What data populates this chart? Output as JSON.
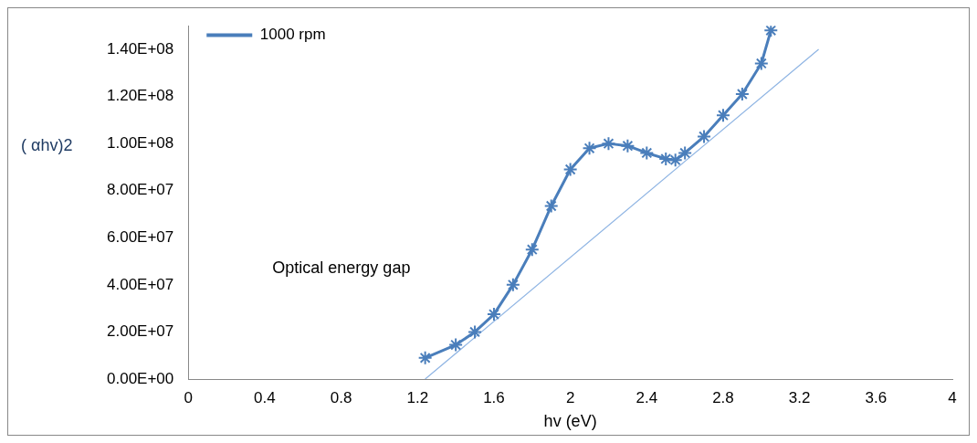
{
  "chart_data": {
    "type": "line",
    "xlabel": "hv (eV)",
    "ylabel": "( αhv)2",
    "annotations": [
      "Optical energy gap"
    ],
    "xlim": [
      0,
      4
    ],
    "xticks": [
      0,
      0.4,
      0.8,
      1.2,
      1.6,
      2,
      2.4,
      2.8,
      3.2,
      3.6,
      4
    ],
    "ylim": [
      0,
      150000000
    ],
    "yticks": [
      {
        "value": 0,
        "label": "0.00E+00"
      },
      {
        "value": 20000000,
        "label": "2.00E+07"
      },
      {
        "value": 40000000,
        "label": "4.00E+07"
      },
      {
        "value": 60000000,
        "label": "6.00E+07"
      },
      {
        "value": 80000000,
        "label": "8.00E+07"
      },
      {
        "value": 100000000,
        "label": "1.00E+08"
      },
      {
        "value": 120000000,
        "label": "1.20E+08"
      },
      {
        "value": 140000000,
        "label": "1.40E+08"
      }
    ],
    "grid": false,
    "legend": "top left",
    "series": [
      {
        "name": "1000 rpm",
        "color": "#4a7ebb",
        "marker": "cross",
        "x": [
          1.24,
          1.4,
          1.5,
          1.6,
          1.7,
          1.8,
          1.9,
          2.0,
          2.1,
          2.2,
          2.3,
          2.4,
          2.5,
          2.55,
          2.6,
          2.7,
          2.8,
          2.9,
          3.0,
          3.05
        ],
        "values": [
          9000000,
          14500000,
          20000000,
          27500000,
          40000000,
          55000000,
          73500000,
          89000000,
          98000000,
          100000000,
          99000000,
          96000000,
          93500000,
          93000000,
          96000000,
          103000000,
          112000000,
          121000000,
          134000000,
          148000000
        ]
      },
      {
        "type": "line",
        "color": "#8eb4e3",
        "marker": "none",
        "x": [
          1.24,
          3.3
        ],
        "values": [
          0,
          140000000
        ]
      }
    ]
  }
}
